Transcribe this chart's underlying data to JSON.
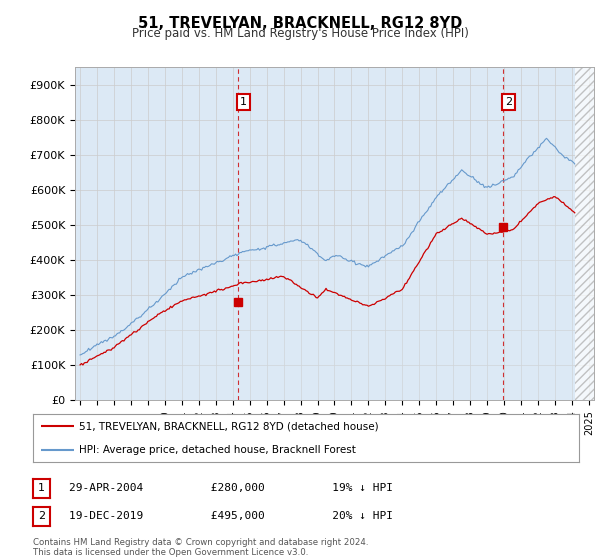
{
  "title": "51, TREVELYAN, BRACKNELL, RG12 8YD",
  "subtitle": "Price paid vs. HM Land Registry's House Price Index (HPI)",
  "legend_line1": "51, TREVELYAN, BRACKNELL, RG12 8YD (detached house)",
  "legend_line2": "HPI: Average price, detached house, Bracknell Forest",
  "annotation1_text": "29-APR-2004          £280,000          19% ↓ HPI",
  "annotation2_text": "19-DEC-2019          £495,000          20% ↓ HPI",
  "ylim": [
    0,
    950000
  ],
  "yticks": [
    0,
    100000,
    200000,
    300000,
    400000,
    500000,
    600000,
    700000,
    800000,
    900000
  ],
  "line_color_red": "#cc0000",
  "line_color_blue": "#6699cc",
  "fill_color_blue": "#dce9f5",
  "vline_color": "#cc0000",
  "background_color": "#ffffff",
  "grid_color": "#cccccc",
  "annotation_box_color": "#cc0000",
  "footer_text": "Contains HM Land Registry data © Crown copyright and database right 2024.\nThis data is licensed under the Open Government Licence v3.0.",
  "sale1_x": 2004.33,
  "sale1_y": 280000,
  "sale2_x": 2019.96,
  "sale2_y": 495000,
  "xlim_left": 1994.7,
  "xlim_right": 2025.3,
  "hatch_start": 2024.17
}
